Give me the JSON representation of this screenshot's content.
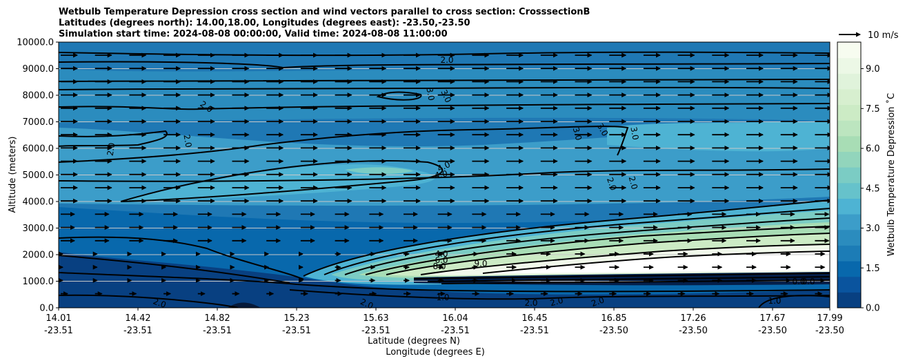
{
  "chart_data": {
    "type": "heatmap",
    "title_lines": [
      "Wetbulb Temperature Depression cross section and wind vectors parallel to cross section: CrosssectionB",
      "Latitudes (degrees north): 14.00,18.00, Longitudes (degrees east): -23.50,-23.50",
      "Simulation start time: 2024-08-08 00:00:00, Valid time: 2024-08-08 11:00:00"
    ],
    "ylabel": "Altitude (meters)",
    "xlabel_lat": "Latitude (degrees N)",
    "xlabel_lon": "Longitude (degrees E)",
    "ylim": [
      0,
      10000
    ],
    "y_ticks": [
      "0.0",
      "1000.0",
      "2000.0",
      "3000.0",
      "4000.0",
      "5000.0",
      "6000.0",
      "7000.0",
      "8000.0",
      "9000.0",
      "10000.0"
    ],
    "x_ticks": [
      {
        "lat": "14.01",
        "lon": "-23.51"
      },
      {
        "lat": "14.42",
        "lon": "-23.51"
      },
      {
        "lat": "14.82",
        "lon": "-23.51"
      },
      {
        "lat": "15.23",
        "lon": "-23.51"
      },
      {
        "lat": "15.63",
        "lon": "-23.51"
      },
      {
        "lat": "16.04",
        "lon": "-23.51"
      },
      {
        "lat": "16.45",
        "lon": "-23.51"
      },
      {
        "lat": "16.85",
        "lon": "-23.50"
      },
      {
        "lat": "17.26",
        "lon": "-23.50"
      },
      {
        "lat": "17.67",
        "lon": "-23.50"
      },
      {
        "lat": "17.99",
        "lon": "-23.50"
      }
    ],
    "colorbar": {
      "label": "Wetbulb Temperature Depression ˚C",
      "range": [
        0,
        10
      ],
      "ticks": [
        "0.0",
        "1.5",
        "3.0",
        "4.5",
        "6.0",
        "7.5",
        "9.0"
      ],
      "colors": [
        "#084081",
        "#0868ac",
        "#2b8cbe",
        "#4eb3d3",
        "#7bccc4",
        "#a8ddb5",
        "#ccebc5",
        "#e0f3db",
        "#f7fcf0"
      ]
    },
    "quiver_key": {
      "label": "10 m/s"
    },
    "grid": "horizontal",
    "contour_labels": [
      "2.0",
      "3.0",
      "3.0",
      "2.0",
      "2.0",
      "2.0",
      "4.0",
      "4.0",
      "3.0",
      "3.0",
      "3.0",
      "2.0",
      "2.0",
      "4.0",
      "6.0",
      "8.0",
      "9.0",
      "1.0",
      "1.0",
      "2.0",
      "2.0",
      "2.0",
      "2.0",
      "2.0",
      "0.0",
      "0.0"
    ]
  }
}
